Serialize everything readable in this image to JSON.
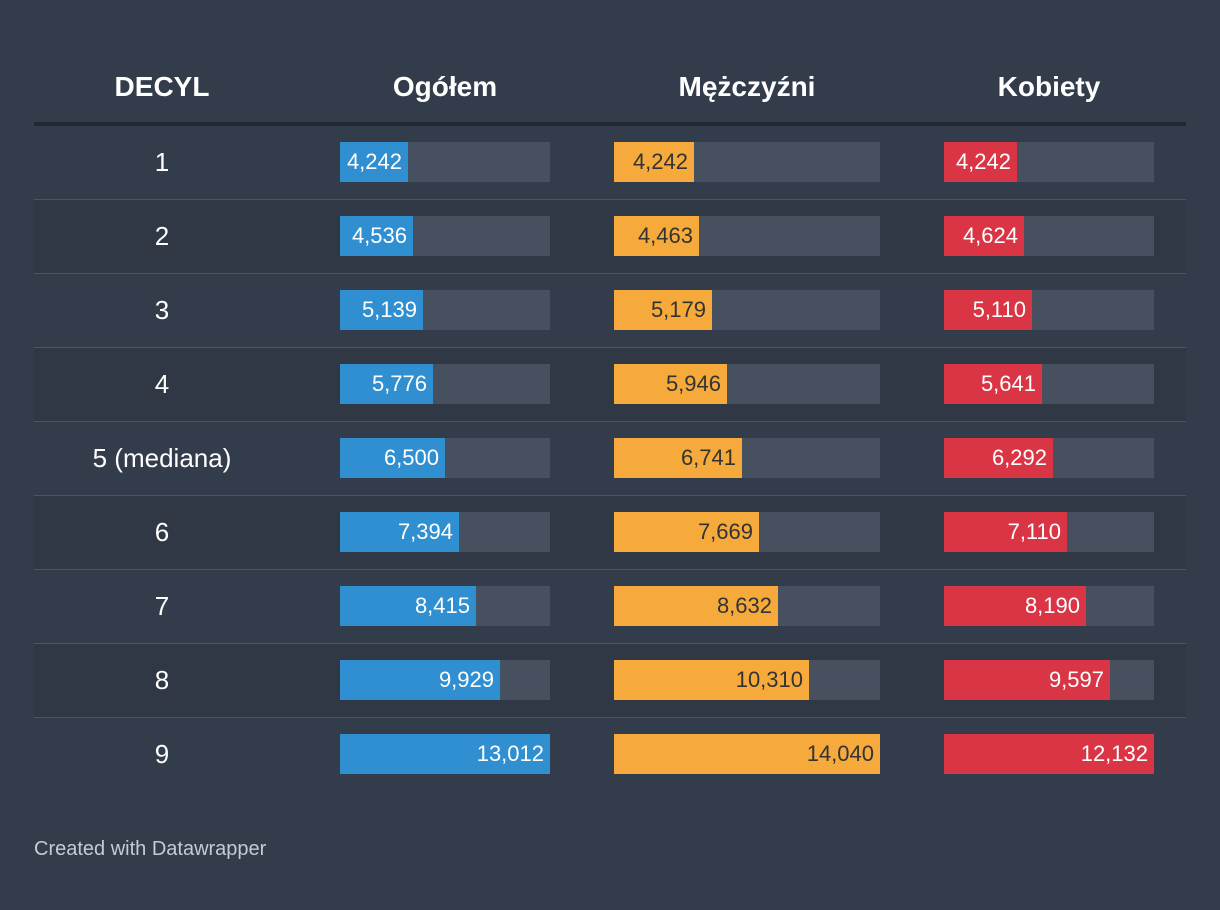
{
  "chart_data": {
    "type": "table",
    "columns": [
      "DECYL",
      "Ogółem",
      "Mężczyźni",
      "Kobiety"
    ],
    "categories": [
      "1",
      "2",
      "3",
      "4",
      "5 (mediana)",
      "6",
      "7",
      "8",
      "9"
    ],
    "series": [
      {
        "name": "Ogółem",
        "color": "#2f8fd0",
        "text_color": "#ffffff",
        "values": [
          4242,
          4536,
          5139,
          5776,
          6500,
          7394,
          8415,
          9929,
          13012
        ],
        "labels": [
          "4,242",
          "4,536",
          "5,139",
          "5,776",
          "6,500",
          "7,394",
          "8,415",
          "9,929",
          "13,012"
        ]
      },
      {
        "name": "Mężczyźni",
        "color": "#f5aa3b",
        "text_color": "#333333",
        "values": [
          4242,
          4463,
          5179,
          5946,
          6741,
          7669,
          8632,
          10310,
          14040
        ],
        "labels": [
          "4,242",
          "4,463",
          "5,179",
          "5,946",
          "6,741",
          "7,669",
          "8,632",
          "10,310",
          "14,040"
        ]
      },
      {
        "name": "Kobiety",
        "color": "#d93545",
        "text_color": "#ffffff",
        "values": [
          4242,
          4624,
          5110,
          5641,
          6292,
          7110,
          8190,
          9597,
          12132
        ],
        "labels": [
          "4,242",
          "4,624",
          "5,110",
          "5,641",
          "6,292",
          "7,110",
          "8,190",
          "9,597",
          "12,132"
        ]
      }
    ]
  },
  "footer": {
    "credit": "Created with Datawrapper"
  }
}
